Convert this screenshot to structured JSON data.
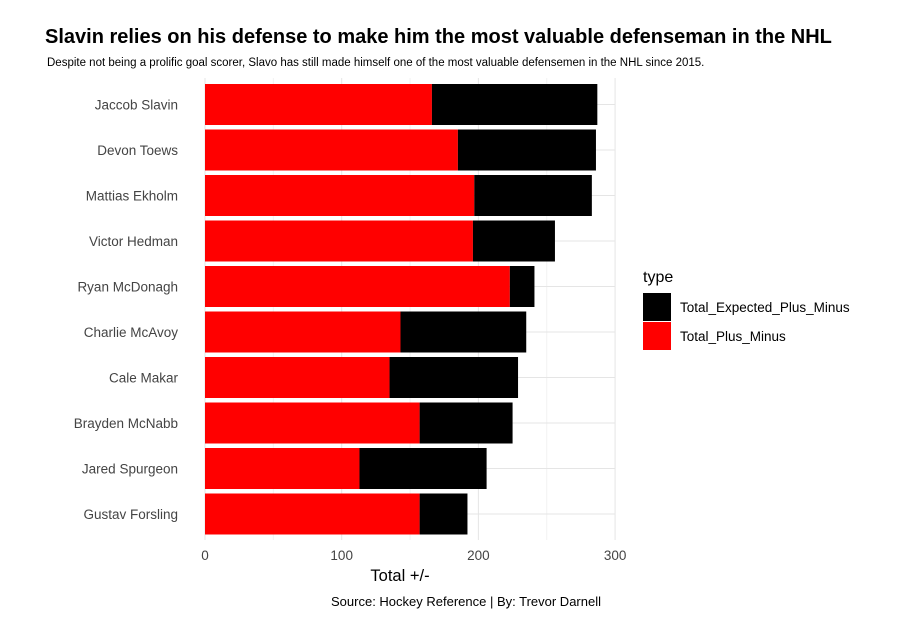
{
  "chart_data": {
    "type": "bar",
    "orientation": "horizontal",
    "stacked": true,
    "title": "Slavin relies on his defense to make him the most valuable defenseman in the NHL",
    "subtitle": "Despite not being a prolific goal scorer, Slavo has still made himself one of the most valuable defensemen in the NHL since 2015.",
    "caption": "Source: Hockey Reference | By: Trevor Darnell",
    "xlabel": "Total +/-",
    "ylabel": "",
    "xlim": [
      0,
      300
    ],
    "xticks": [
      "0",
      "100",
      "200",
      "300"
    ],
    "grid": true,
    "legend_title": "type",
    "legend_position": "right",
    "categories": [
      "Jaccob Slavin",
      "Devon Toews",
      "Mattias Ekholm",
      "Victor Hedman",
      "Ryan McDonagh",
      "Charlie McAvoy",
      "Cale Makar",
      "Brayden McNabb",
      "Jared Spurgeon",
      "Gustav Forsling"
    ],
    "series": [
      {
        "name": "Total_Plus_Minus",
        "color": "#ff0000",
        "values": [
          166,
          185,
          197,
          196,
          223,
          143,
          135,
          157,
          113,
          157
        ]
      },
      {
        "name": "Total_Expected_Plus_Minus",
        "color": "#000000",
        "values": [
          121,
          101,
          86,
          60,
          18,
          92,
          94,
          68,
          93,
          35
        ]
      }
    ],
    "legend_order": [
      "Total_Expected_Plus_Minus",
      "Total_Plus_Minus"
    ]
  }
}
